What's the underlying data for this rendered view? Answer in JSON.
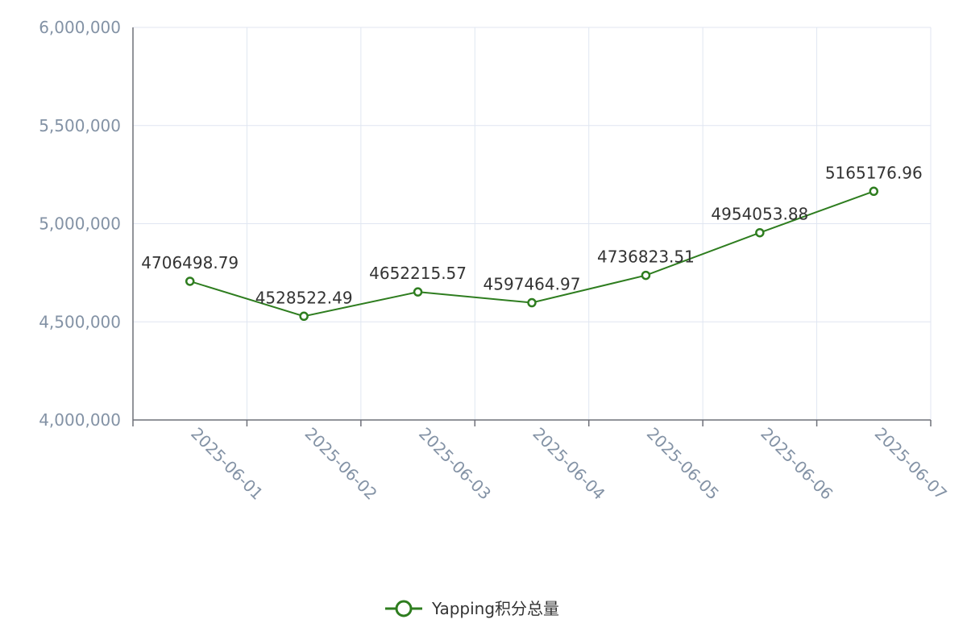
{
  "chart_data": {
    "type": "line",
    "title": "",
    "xlabel": "",
    "ylabel": "",
    "categories": [
      "2025-06-01",
      "2025-06-02",
      "2025-06-03",
      "2025-06-04",
      "2025-06-05",
      "2025-06-06",
      "2025-06-07"
    ],
    "series": [
      {
        "name": "Yapping积分总量",
        "values": [
          4706498.79,
          4528522.49,
          4652215.57,
          4597464.97,
          4736823.51,
          4954053.88,
          5165176.96
        ],
        "data_labels": [
          "4706498.79",
          "4528522.49",
          "4652215.57",
          "4597464.97",
          "4736823.51",
          "4954053.88",
          "5165176.96"
        ],
        "color": "#2e7d1f"
      }
    ],
    "ylim": [
      4000000,
      6000000
    ],
    "y_ticks": [
      4000000,
      4500000,
      5000000,
      5500000,
      6000000
    ],
    "y_tick_labels": [
      "4,000,000",
      "4,500,000",
      "5,000,000",
      "5,500,000",
      "6,000,000"
    ],
    "grid": true,
    "legend_position": "bottom-center",
    "colors": {
      "grid": "#e0e6f1",
      "axis": "#6e7079",
      "tick_text": "#8392a5",
      "label_text": "#333333"
    }
  }
}
